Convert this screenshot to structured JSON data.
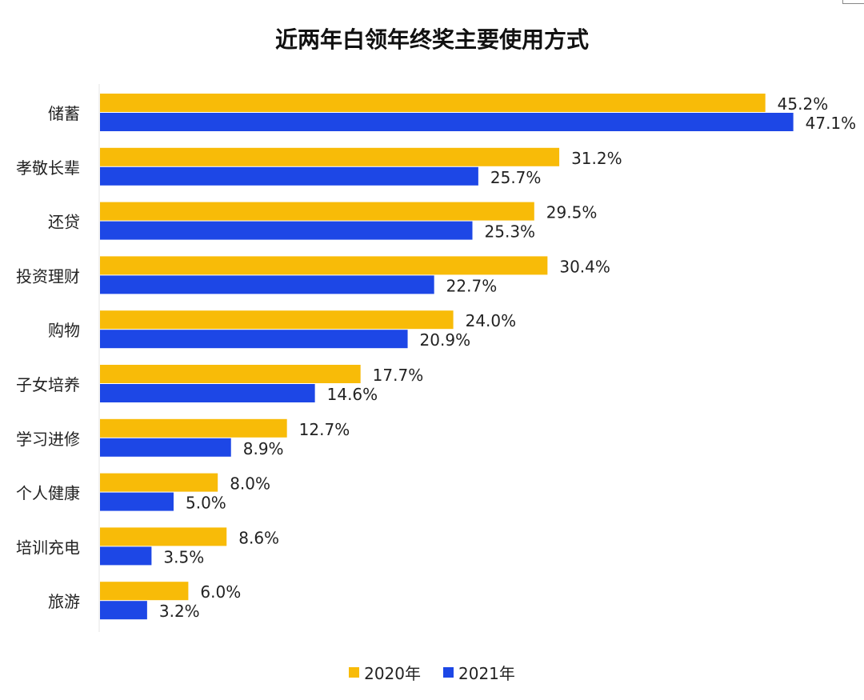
{
  "chart_data": {
    "type": "bar",
    "orientation": "horizontal",
    "title": "近两年白领年终奖主要使用方式",
    "categories": [
      "储蓄",
      "孝敬长辈",
      "还贷",
      "投资理财",
      "购物",
      "子女培养",
      "学习进修",
      "个人健康",
      "培训充电",
      "旅游"
    ],
    "series": [
      {
        "name": "2020年",
        "color": "#F8BB08",
        "values": [
          45.2,
          31.2,
          29.5,
          30.4,
          24.0,
          17.7,
          12.7,
          8.0,
          8.6,
          6.0
        ]
      },
      {
        "name": "2021年",
        "color": "#1D47E6",
        "values": [
          47.1,
          25.7,
          25.3,
          22.7,
          20.9,
          14.6,
          8.9,
          5.0,
          3.5,
          3.2
        ]
      }
    ],
    "value_suffix": "%",
    "xlabel": "",
    "ylabel": "",
    "grid": false,
    "legend_position": "bottom"
  }
}
